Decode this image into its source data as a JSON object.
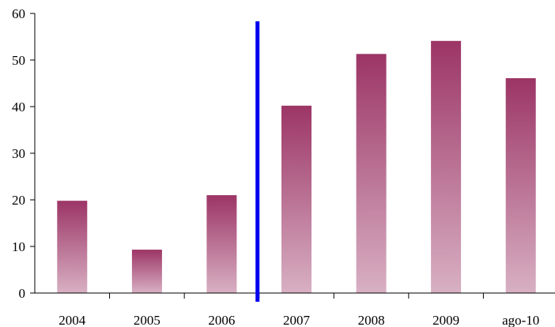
{
  "chart_data": {
    "type": "bar",
    "title": "",
    "xlabel": "",
    "ylabel": "",
    "categories": [
      "2004",
      "2005",
      "2006",
      "2007",
      "2008",
      "2009",
      "ago-10"
    ],
    "values": [
      19.8,
      9.3,
      21.0,
      40.2,
      51.3,
      54.1,
      46.1
    ],
    "ylim": [
      0,
      60
    ],
    "yticks": [
      "0",
      "10",
      "20",
      "30",
      "40",
      "50",
      "60"
    ],
    "grid": false,
    "legend": "none",
    "bar_gradient": {
      "top": "#9c3566",
      "bottom": "#d8b0c3"
    },
    "marker": {
      "after_category": "2006",
      "color": "#0000ee"
    }
  }
}
